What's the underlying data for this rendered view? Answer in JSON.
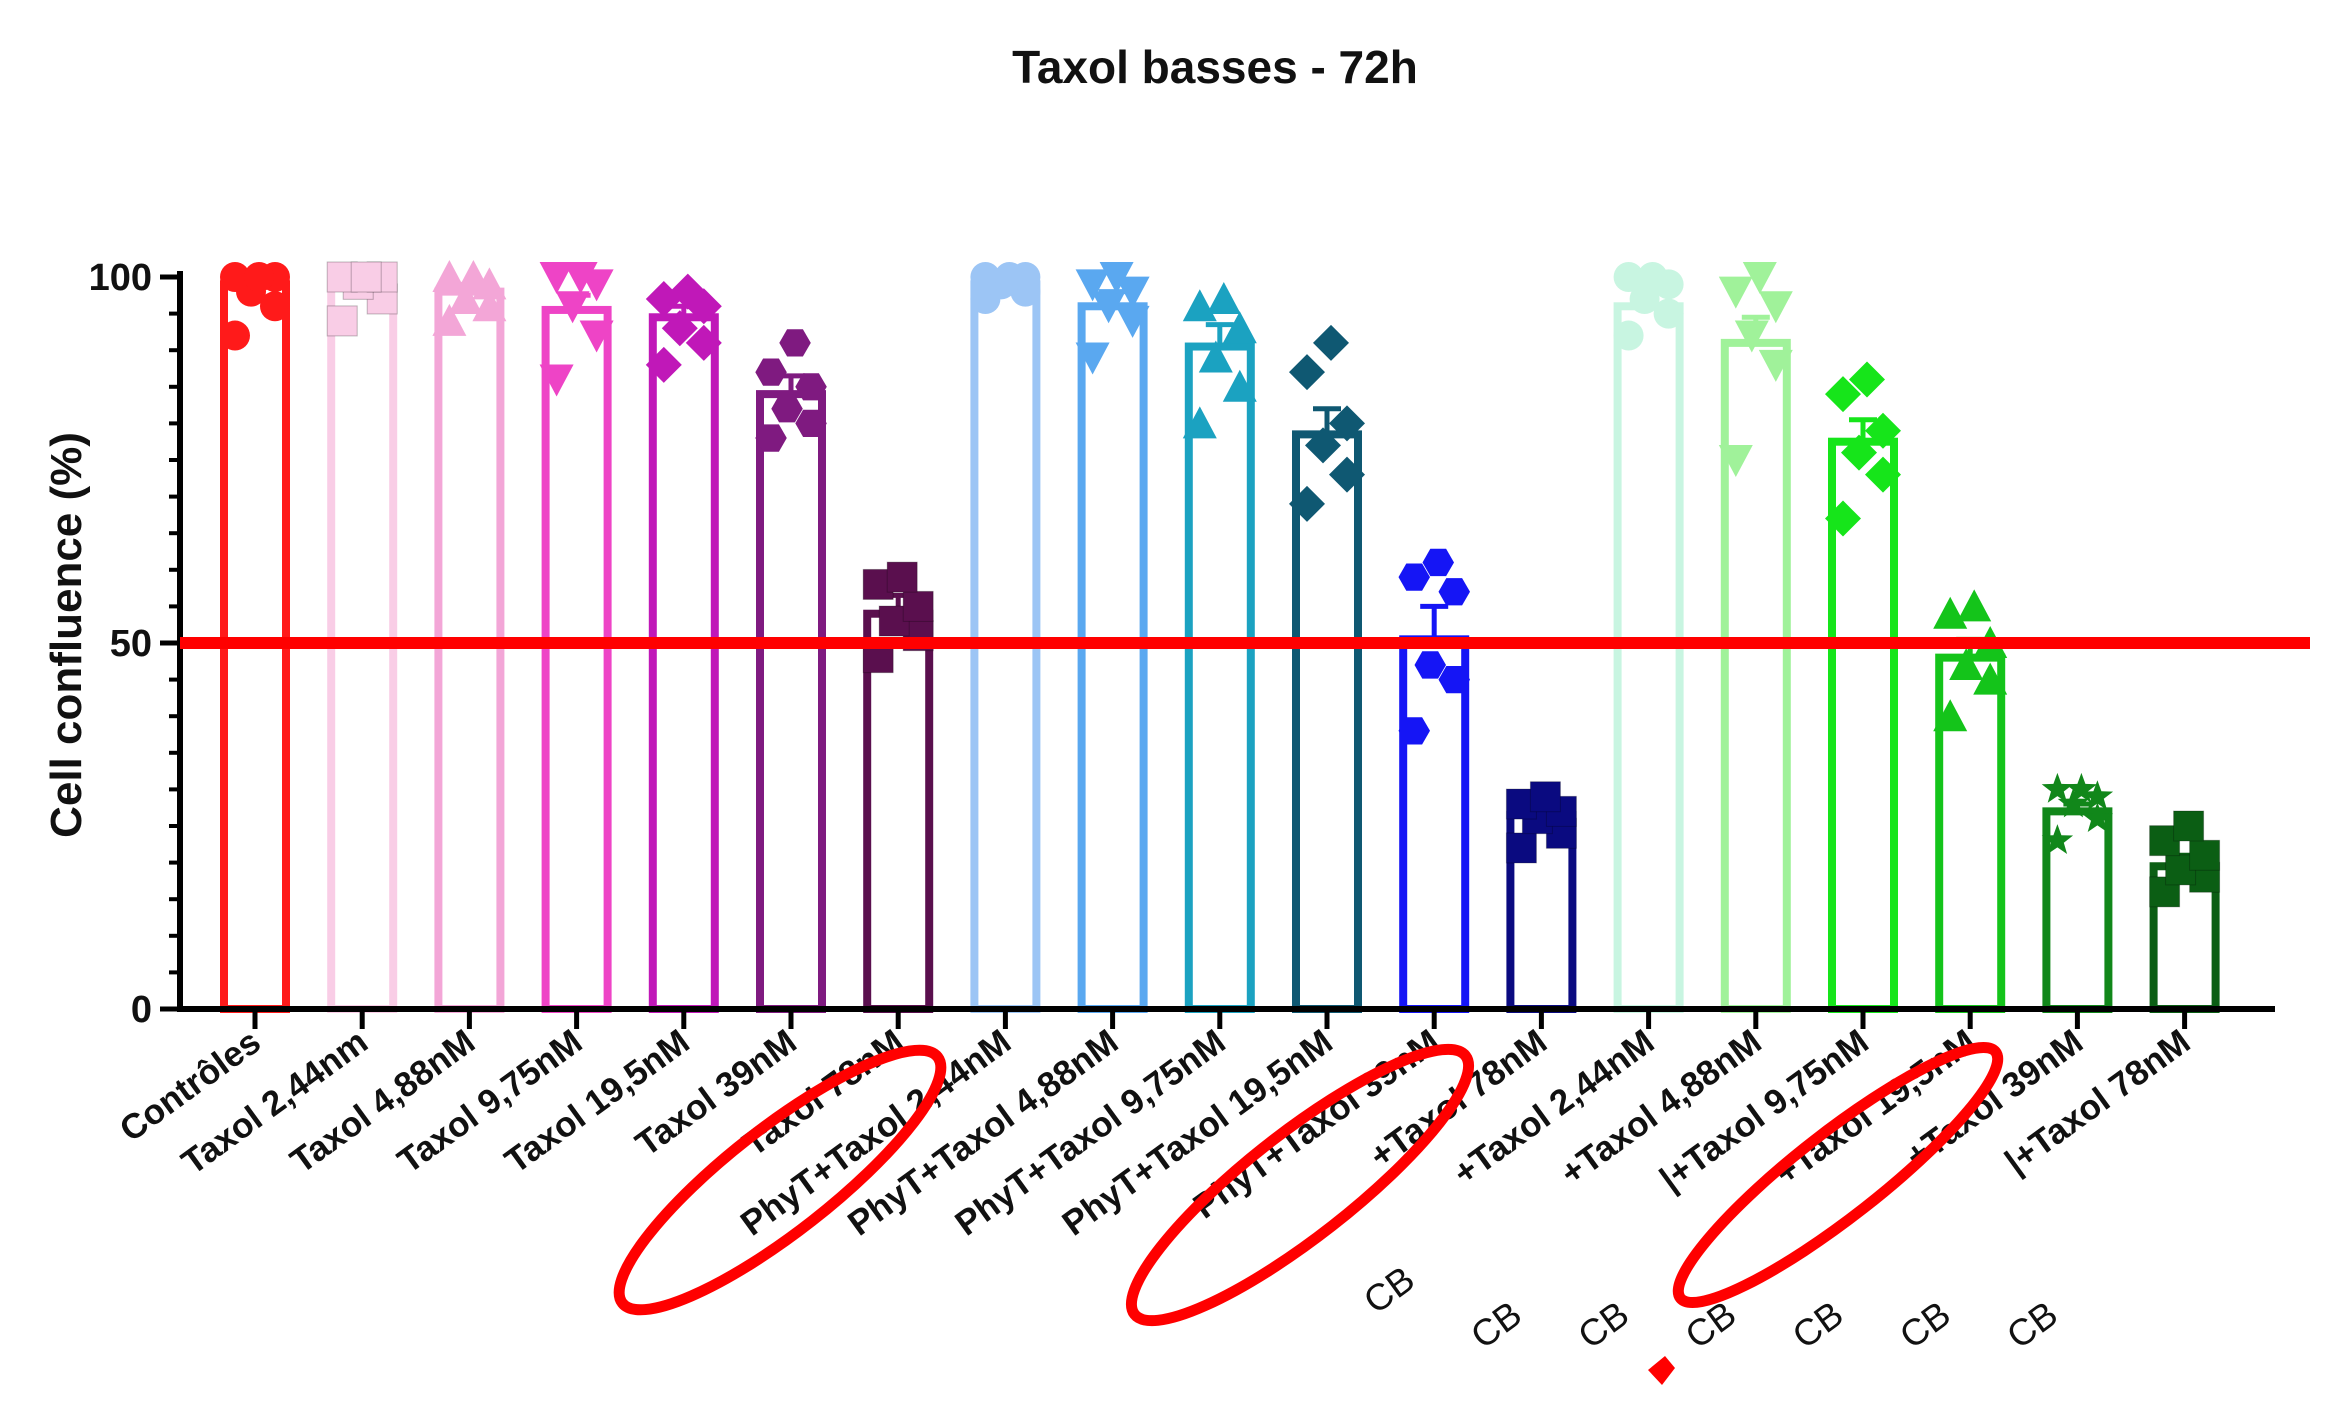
{
  "chart_data": {
    "type": "bar",
    "title": "Taxol basses - 72h",
    "xlabel": "",
    "ylabel": "Cell confluence (%)",
    "ylim": [
      0,
      100
    ],
    "yticks": [
      "0",
      "50",
      "100"
    ],
    "reference_line": {
      "y": 50,
      "color": "#ff0000"
    },
    "overlay_marks": "red ellipses drawn around Taxol 78nM, PhyT+Taxol 39nM, CB +Taxol 19,5nM",
    "categories": [
      "Contrôles",
      "Taxol 2,44nm",
      "Taxol 4,88nM",
      "Taxol 9,75nM",
      "Taxol 19,5nM",
      "Taxol 39nM",
      "Taxol 78nM",
      "PhyT+Taxol 2,44nM",
      "PhyT+Taxol 4,88nM",
      "PhyT+Taxol 9,75nM",
      "PhyT+Taxol 19,5nM",
      "PhyT+Taxol 39nM",
      "+Taxol 78nM",
      "+Taxol 2,44nM",
      "+Taxol 4,88nM",
      "|+Taxol 9,75nM",
      "+Taxol 19,5nM",
      "+Taxol 39nM",
      "|+Taxol 78nM"
    ],
    "cb_labels": [
      "CB",
      "CB",
      "CB",
      "CB",
      "CB",
      "CB",
      "CB"
    ],
    "values": [
      99,
      99,
      98,
      95.5,
      94.5,
      84,
      54,
      99,
      96,
      90.5,
      78.5,
      50.5,
      26.5,
      96,
      91,
      77.5,
      48,
      27,
      19.5
    ],
    "errors": [
      1.2,
      1,
      1,
      2,
      1.5,
      2.5,
      2.5,
      0.8,
      2,
      3,
      3.5,
      4.5,
      1.5,
      2.5,
      3.5,
      3,
      2.5,
      1,
      1.5
    ],
    "colors": [
      "#ff1a1a",
      "#f9cde6",
      "#f3a6d7",
      "#ee44c6",
      "#c018b8",
      "#7f1a80",
      "#5a0f4e",
      "#9cc5f5",
      "#5aa8f0",
      "#1ba2c1",
      "#0f5872",
      "#1515f5",
      "#0a0a80",
      "#c8f5e1",
      "#a0f29a",
      "#16e51a",
      "#14c41a",
      "#11871a",
      "#0b5e14"
    ],
    "markers": [
      "circle",
      "square",
      "triangle",
      "triangle-down",
      "diamond",
      "hexagon",
      "square",
      "circle",
      "triangle-down",
      "triangle",
      "diamond",
      "hexagon",
      "square",
      "circle",
      "triangle-down",
      "diamond",
      "triangle",
      "star",
      "square"
    ],
    "points": [
      [
        92,
        96,
        98,
        100,
        100,
        100
      ],
      [
        94,
        97,
        99,
        100,
        100,
        100
      ],
      [
        94,
        96,
        97,
        99,
        100,
        100
      ],
      [
        86,
        92,
        96,
        99,
        100,
        100
      ],
      [
        88,
        91,
        93,
        96,
        97,
        98
      ],
      [
        78,
        80,
        82,
        85,
        87,
        91
      ],
      [
        48,
        51,
        53,
        55,
        58,
        59
      ],
      [
        97,
        98,
        99,
        100,
        100,
        100
      ],
      [
        89,
        94,
        96,
        98,
        99,
        100
      ],
      [
        80,
        85,
        89,
        93,
        96,
        97
      ],
      [
        69,
        73,
        77,
        80,
        87,
        91
      ],
      [
        38,
        45,
        47,
        57,
        59,
        61
      ],
      [
        22,
        24,
        26,
        27,
        28,
        29
      ],
      [
        92,
        95,
        97,
        99,
        100,
        100
      ],
      [
        75,
        88,
        92,
        96,
        98,
        100
      ],
      [
        67,
        73,
        76,
        79,
        84,
        86
      ],
      [
        40,
        45,
        47,
        50,
        54,
        55
      ],
      [
        23,
        26,
        28,
        29,
        30,
        30
      ],
      [
        16,
        18,
        19,
        21,
        23,
        25
      ]
    ]
  }
}
